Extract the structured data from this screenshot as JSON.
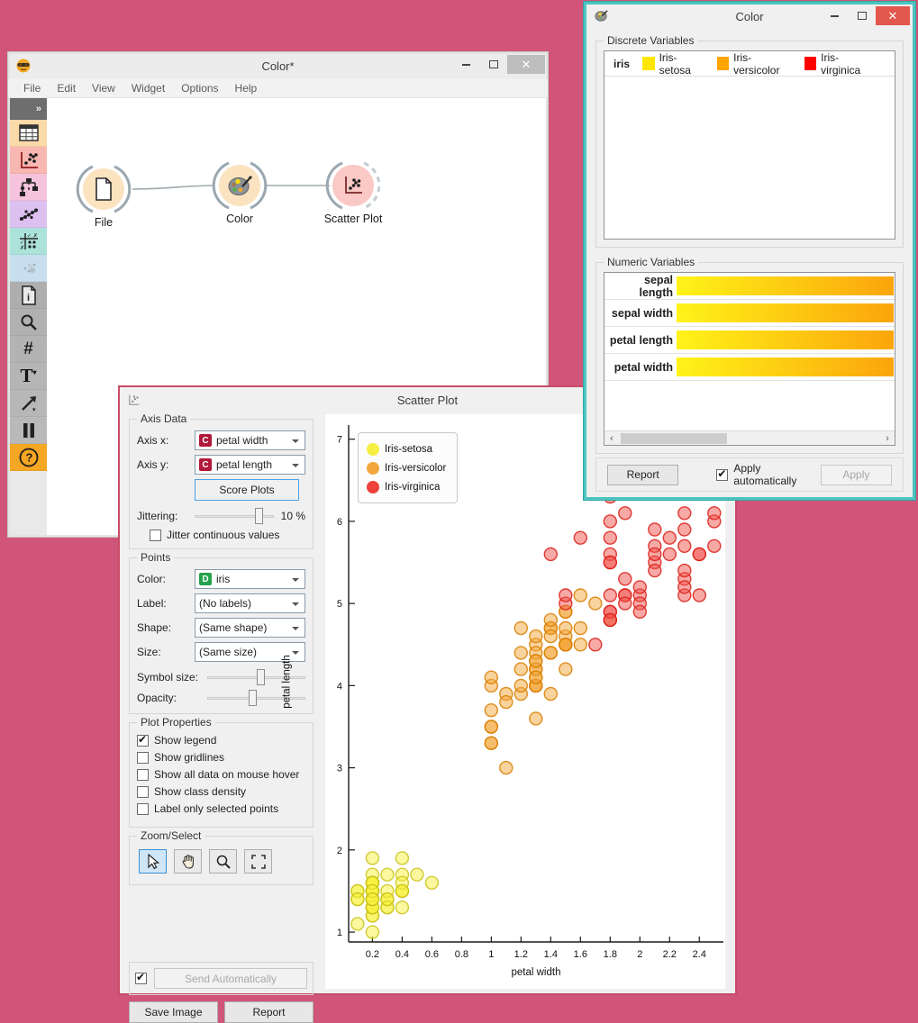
{
  "main_window": {
    "title": "Color*",
    "menus": [
      "File",
      "Edit",
      "View",
      "Widget",
      "Options",
      "Help"
    ],
    "toolbar": [
      {
        "name": "expander",
        "color": "#6e6e6e"
      },
      {
        "name": "data-table",
        "color": "#fbd9a8"
      },
      {
        "name": "visualize",
        "color": "#f8b7b0"
      },
      {
        "name": "model",
        "color": "#f6c3dc"
      },
      {
        "name": "evaluate",
        "color": "#dcc0f0"
      },
      {
        "name": "unsupervised",
        "color": "#abe2da"
      },
      {
        "name": "extensions",
        "color": "#c8dff0"
      },
      {
        "name": "info",
        "color": "#aeaeae"
      },
      {
        "name": "zoom",
        "color": "#b1b1b1"
      },
      {
        "name": "grid",
        "color": "#b3b3b3"
      },
      {
        "name": "text",
        "color": "#b5b5b5"
      },
      {
        "name": "arrow",
        "color": "#b7b7b7"
      },
      {
        "name": "pause",
        "color": "#b9b9b9"
      },
      {
        "name": "help",
        "color": "#f5a623"
      }
    ],
    "nodes": [
      {
        "label": "File"
      },
      {
        "label": "Color"
      },
      {
        "label": "Scatter Plot"
      }
    ]
  },
  "color_dialog": {
    "title": "Color",
    "discrete_group": "Discrete Variables",
    "discrete_rows": [
      {
        "name": "iris",
        "values": [
          {
            "label": "Iris-setosa",
            "color": "#ffe600"
          },
          {
            "label": "Iris-versicolor",
            "color": "#ffa500"
          },
          {
            "label": "Iris-virginica",
            "color": "#ff0000"
          }
        ]
      }
    ],
    "numeric_group": "Numeric Variables",
    "numeric_rows": [
      {
        "name": "sepal length"
      },
      {
        "name": "sepal width"
      },
      {
        "name": "petal length"
      },
      {
        "name": "petal width"
      }
    ],
    "gradient": {
      "from": "#fff318",
      "to": "#fba50c"
    },
    "report_label": "Report",
    "apply_auto_label": "Apply automatically",
    "apply_auto_checked": true,
    "apply_label": "Apply"
  },
  "scatter_window": {
    "title": "Scatter Plot",
    "axis_group": "Axis Data",
    "axis_x_label": "Axis x:",
    "axis_x_badge": "C",
    "axis_x_value": "petal width",
    "axis_y_label": "Axis y:",
    "axis_y_badge": "C",
    "axis_y_value": "petal length",
    "score_plots_label": "Score Plots",
    "jittering_label": "Jittering:",
    "jittering_value": "10 %",
    "jittering_pos": 0.82,
    "jitter_checkbox_label": "Jitter continuous values",
    "jitter_checked": false,
    "points_group": "Points",
    "color_label": "Color:",
    "color_badge": "D",
    "color_value": "iris",
    "label_label": "Label:",
    "label_value": "(No labels)",
    "shape_label": "Shape:",
    "shape_value": "(Same shape)",
    "size_label": "Size:",
    "size_value": "(Same size)",
    "symbol_size_label": "Symbol size:",
    "symbol_size_pos": 0.55,
    "opacity_label": "Opacity:",
    "opacity_pos": 0.47,
    "plot_props_group": "Plot Properties",
    "plot_props": [
      {
        "label": "Show legend",
        "checked": true
      },
      {
        "label": "Show gridlines",
        "checked": false
      },
      {
        "label": "Show all data on mouse hover",
        "checked": false
      },
      {
        "label": "Show class density",
        "checked": false
      },
      {
        "label": "Label only selected points",
        "checked": false
      }
    ],
    "zoom_group": "Zoom/Select",
    "zoom_tools": [
      "select",
      "pan",
      "zoom",
      "reset-zoom"
    ],
    "send_auto_label": "Send Automatically",
    "send_auto_checked": true,
    "save_image_label": "Save Image",
    "report_label": "Report"
  },
  "chart_data": {
    "type": "scatter",
    "xlabel": "petal width",
    "ylabel": "petal length",
    "xlim": [
      0.04,
      2.55
    ],
    "ylim": [
      0.88,
      7.15
    ],
    "x_ticks": [
      0.2,
      0.4,
      0.6,
      0.8,
      1,
      1.2,
      1.4,
      1.6,
      1.8,
      2,
      2.2,
      2.4
    ],
    "x_tick_labels": [
      "0.2",
      "0.4",
      "0.6",
      "0.8",
      "1",
      "1.2",
      "1.4",
      "1.6",
      "1.8",
      "2",
      "2.2",
      "2.4"
    ],
    "y_ticks": [
      1,
      2,
      3,
      4,
      5,
      6,
      7
    ],
    "y_tick_labels": [
      "1",
      "2",
      "3",
      "4",
      "5",
      "6",
      "7"
    ],
    "grid": false,
    "legend": {
      "position": "top-left"
    },
    "series": [
      {
        "name": "Iris-setosa",
        "fill": "#f7f13f",
        "stroke": "#c9c21a",
        "legend_color": "#f6ef41",
        "points": [
          [
            0.2,
            1.4
          ],
          [
            0.2,
            1.4
          ],
          [
            0.2,
            1.3
          ],
          [
            0.2,
            1.5
          ],
          [
            0.2,
            1.4
          ],
          [
            0.4,
            1.7
          ],
          [
            0.3,
            1.4
          ],
          [
            0.2,
            1.5
          ],
          [
            0.2,
            1.4
          ],
          [
            0.1,
            1.5
          ],
          [
            0.2,
            1.5
          ],
          [
            0.2,
            1.6
          ],
          [
            0.1,
            1.4
          ],
          [
            0.1,
            1.1
          ],
          [
            0.2,
            1.2
          ],
          [
            0.4,
            1.5
          ],
          [
            0.4,
            1.3
          ],
          [
            0.3,
            1.4
          ],
          [
            0.3,
            1.7
          ],
          [
            0.3,
            1.5
          ],
          [
            0.2,
            1.7
          ],
          [
            0.4,
            1.5
          ],
          [
            0.2,
            1.0
          ],
          [
            0.5,
            1.7
          ],
          [
            0.2,
            1.9
          ],
          [
            0.2,
            1.6
          ],
          [
            0.4,
            1.6
          ],
          [
            0.2,
            1.5
          ],
          [
            0.2,
            1.4
          ],
          [
            0.2,
            1.6
          ],
          [
            0.2,
            1.6
          ],
          [
            0.4,
            1.5
          ],
          [
            0.1,
            1.5
          ],
          [
            0.2,
            1.4
          ],
          [
            0.2,
            1.5
          ],
          [
            0.2,
            1.2
          ],
          [
            0.2,
            1.3
          ],
          [
            0.1,
            1.4
          ],
          [
            0.2,
            1.3
          ],
          [
            0.2,
            1.5
          ],
          [
            0.3,
            1.3
          ],
          [
            0.3,
            1.3
          ],
          [
            0.2,
            1.3
          ],
          [
            0.6,
            1.6
          ],
          [
            0.4,
            1.9
          ],
          [
            0.3,
            1.4
          ],
          [
            0.2,
            1.6
          ],
          [
            0.2,
            1.4
          ],
          [
            0.2,
            1.5
          ],
          [
            0.2,
            1.4
          ]
        ]
      },
      {
        "name": "Iris-versicolor",
        "fill": "#f4a73c",
        "stroke": "#d87e00",
        "legend_color": "#f3a73b",
        "points": [
          [
            1.4,
            4.7
          ],
          [
            1.5,
            4.5
          ],
          [
            1.5,
            4.9
          ],
          [
            1.3,
            4.0
          ],
          [
            1.5,
            4.6
          ],
          [
            1.3,
            4.5
          ],
          [
            1.6,
            4.7
          ],
          [
            1.0,
            3.3
          ],
          [
            1.3,
            4.6
          ],
          [
            1.4,
            3.9
          ],
          [
            1.0,
            3.5
          ],
          [
            1.5,
            4.2
          ],
          [
            1.0,
            4.0
          ],
          [
            1.4,
            4.7
          ],
          [
            1.3,
            3.6
          ],
          [
            1.4,
            4.4
          ],
          [
            1.5,
            4.5
          ],
          [
            1.0,
            4.1
          ],
          [
            1.5,
            4.5
          ],
          [
            1.1,
            3.9
          ],
          [
            1.8,
            4.8
          ],
          [
            1.3,
            4.0
          ],
          [
            1.5,
            4.9
          ],
          [
            1.2,
            4.7
          ],
          [
            1.3,
            4.3
          ],
          [
            1.4,
            4.4
          ],
          [
            1.4,
            4.8
          ],
          [
            1.7,
            5.0
          ],
          [
            1.5,
            4.5
          ],
          [
            1.0,
            3.5
          ],
          [
            1.1,
            3.8
          ],
          [
            1.0,
            3.7
          ],
          [
            1.2,
            3.9
          ],
          [
            1.6,
            5.1
          ],
          [
            1.5,
            4.5
          ],
          [
            1.6,
            4.5
          ],
          [
            1.5,
            4.7
          ],
          [
            1.3,
            4.4
          ],
          [
            1.3,
            4.1
          ],
          [
            1.3,
            4.0
          ],
          [
            1.2,
            4.4
          ],
          [
            1.4,
            4.6
          ],
          [
            1.2,
            4.0
          ],
          [
            1.0,
            3.3
          ],
          [
            1.3,
            4.2
          ],
          [
            1.2,
            4.2
          ],
          [
            1.3,
            4.2
          ],
          [
            1.3,
            4.3
          ],
          [
            1.1,
            3.0
          ],
          [
            1.3,
            4.1
          ]
        ]
      },
      {
        "name": "Iris-virginica",
        "fill": "#f0534d",
        "stroke": "#dc1f18",
        "legend_color": "#ef413b",
        "points": [
          [
            2.5,
            6.0
          ],
          [
            1.9,
            5.1
          ],
          [
            2.1,
            5.9
          ],
          [
            1.8,
            5.6
          ],
          [
            2.2,
            5.8
          ],
          [
            2.1,
            6.6
          ],
          [
            1.7,
            4.5
          ],
          [
            1.8,
            6.3
          ],
          [
            1.8,
            5.8
          ],
          [
            2.5,
            6.1
          ],
          [
            2.0,
            5.1
          ],
          [
            1.9,
            5.3
          ],
          [
            2.1,
            5.5
          ],
          [
            2.0,
            5.0
          ],
          [
            2.4,
            5.1
          ],
          [
            2.3,
            5.3
          ],
          [
            1.8,
            5.5
          ],
          [
            2.2,
            6.7
          ],
          [
            2.3,
            6.9
          ],
          [
            1.5,
            5.0
          ],
          [
            2.3,
            5.7
          ],
          [
            2.0,
            4.9
          ],
          [
            2.0,
            6.7
          ],
          [
            1.8,
            4.9
          ],
          [
            2.1,
            5.7
          ],
          [
            1.8,
            6.0
          ],
          [
            1.8,
            4.8
          ],
          [
            1.8,
            4.9
          ],
          [
            2.1,
            5.6
          ],
          [
            1.6,
            5.8
          ],
          [
            1.9,
            6.1
          ],
          [
            2.0,
            6.4
          ],
          [
            2.2,
            5.6
          ],
          [
            1.5,
            5.1
          ],
          [
            1.4,
            5.6
          ],
          [
            2.3,
            6.1
          ],
          [
            2.4,
            5.6
          ],
          [
            1.8,
            5.5
          ],
          [
            1.8,
            4.8
          ],
          [
            2.1,
            5.4
          ],
          [
            2.4,
            5.6
          ],
          [
            2.3,
            5.1
          ],
          [
            1.9,
            5.1
          ],
          [
            2.3,
            5.9
          ],
          [
            2.5,
            5.7
          ],
          [
            2.3,
            5.2
          ],
          [
            1.9,
            5.0
          ],
          [
            2.0,
            5.2
          ],
          [
            2.3,
            5.4
          ],
          [
            1.8,
            5.1
          ]
        ]
      }
    ]
  }
}
